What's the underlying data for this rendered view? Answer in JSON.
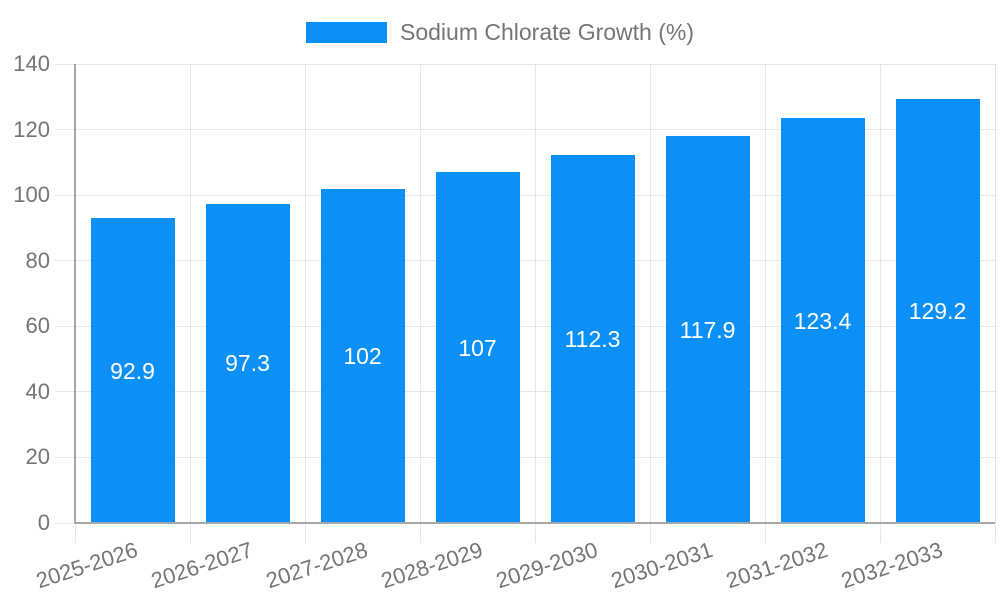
{
  "chart_data": {
    "type": "bar",
    "title": "",
    "legend": {
      "label": "Sodium Chlorate Growth (%)",
      "position": "top"
    },
    "categories": [
      "2025-2026",
      "2026-2027",
      "2027-2028",
      "2028-2029",
      "2029-2030",
      "2030-2031",
      "2031-2032",
      "2032-2033"
    ],
    "series": [
      {
        "name": "Sodium Chlorate Growth (%)",
        "values": [
          92.9,
          97.3,
          102,
          107,
          112.3,
          117.9,
          123.4,
          129.2
        ],
        "data_labels": [
          "92.9",
          "97.3",
          "102",
          "107",
          "112.3",
          "117.9",
          "123.4",
          "129.2"
        ]
      }
    ],
    "xlabel": "",
    "ylabel": "",
    "ylim": [
      0,
      140
    ],
    "yticks": [
      0,
      20,
      40,
      60,
      80,
      100,
      120,
      140
    ],
    "grid": true,
    "xtick_rotation_deg": -18,
    "colors": {
      "bar": "#0b90f8",
      "tick_text": "#757575",
      "grid": "#e6e6e6",
      "axis": "#a6a6a6",
      "value_label": "#ffffff",
      "background": "#ffffff"
    }
  }
}
